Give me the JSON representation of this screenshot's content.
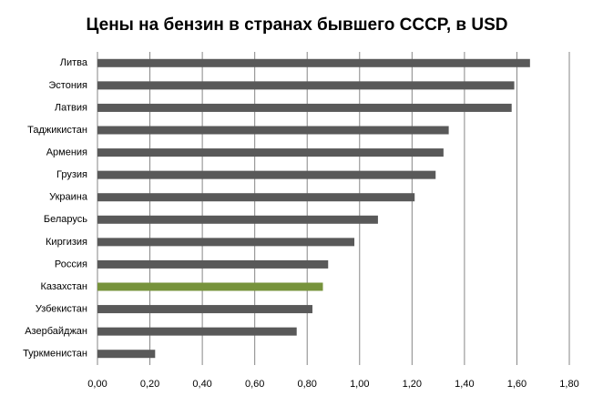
{
  "chart_data": {
    "type": "bar",
    "orientation": "horizontal",
    "title": "Цены на бензин в странах бывшего СССР, в USD",
    "categories": [
      "Литва",
      "Эстония",
      "Латвия",
      "Таджикистан",
      "Армения",
      "Грузия",
      "Украина",
      "Беларусь",
      "Киргизия",
      "Россия",
      "Казахстан",
      "Узбекистан",
      "Азербайджан",
      "Туркменистан"
    ],
    "values": [
      1.65,
      1.59,
      1.58,
      1.34,
      1.32,
      1.29,
      1.21,
      1.07,
      0.98,
      0.88,
      0.86,
      0.82,
      0.76,
      0.22
    ],
    "colors": [
      "#595959",
      "#595959",
      "#595959",
      "#595959",
      "#595959",
      "#595959",
      "#595959",
      "#595959",
      "#595959",
      "#595959",
      "#77933c",
      "#595959",
      "#595959",
      "#595959"
    ],
    "xlim": [
      0,
      1.8
    ],
    "xticks": [
      {
        "value": 0,
        "label": "0,00"
      },
      {
        "value": 0.2,
        "label": "0,20"
      },
      {
        "value": 0.4,
        "label": "0,40"
      },
      {
        "value": 0.6,
        "label": "0,60"
      },
      {
        "value": 0.8,
        "label": "0,80"
      },
      {
        "value": 1.0,
        "label": "1,00"
      },
      {
        "value": 1.2,
        "label": "1,20"
      },
      {
        "value": 1.4,
        "label": "1,40"
      },
      {
        "value": 1.6,
        "label": "1,60"
      },
      {
        "value": 1.8,
        "label": "1,80"
      }
    ],
    "grid": true
  }
}
